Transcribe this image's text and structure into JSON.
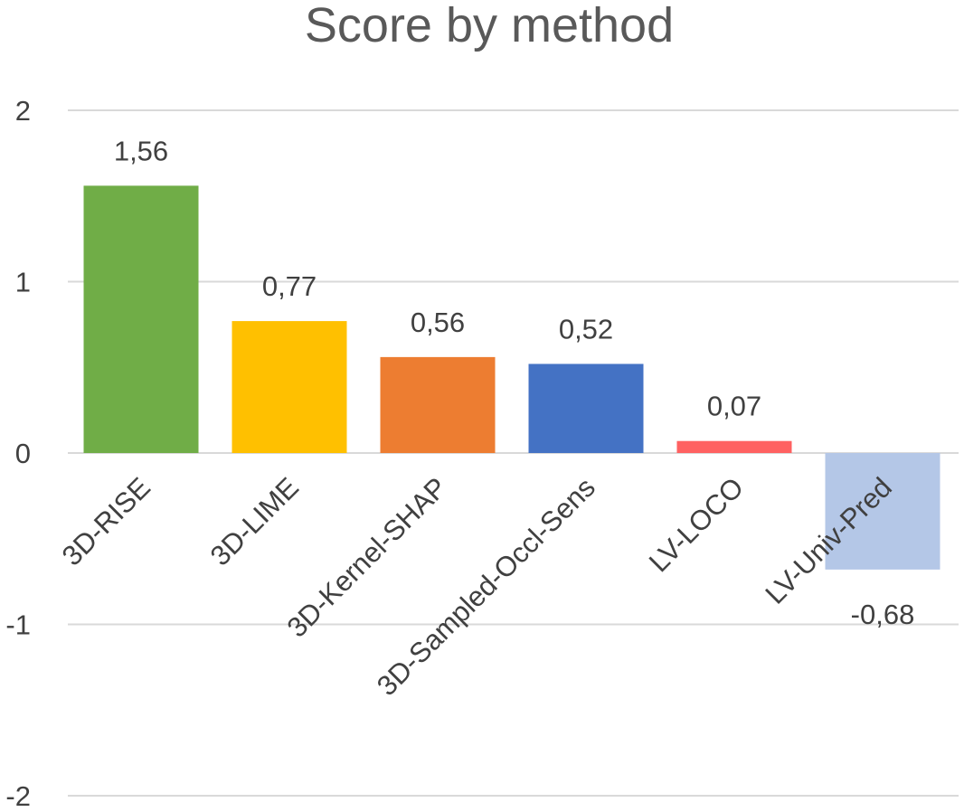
{
  "chart_data": {
    "type": "bar",
    "title": "Score by method",
    "categories": [
      "3D-RISE",
      "3D-LIME",
      "3D-Kernel-SHAP",
      "3D-Sampled-Occl-Sens",
      "LV-LOCO",
      "LV-Univ-Pred"
    ],
    "values": [
      1.56,
      0.77,
      0.56,
      0.52,
      0.07,
      -0.68
    ],
    "data_labels": [
      "1,56",
      "0,77",
      "0,56",
      "0,52",
      "0,07",
      "-0,68"
    ],
    "colors": [
      "#70ad47",
      "#ffc000",
      "#ed7d31",
      "#4472c4",
      "#ff6161",
      "#b4c7e7"
    ],
    "ylim": [
      -2,
      2
    ],
    "yticks": [
      2,
      1,
      0,
      -1,
      -2
    ],
    "ytick_labels": [
      "2",
      "1",
      "0",
      "-1",
      "-2"
    ],
    "grid": true,
    "legend": "none",
    "xlabel": "",
    "ylabel": ""
  }
}
